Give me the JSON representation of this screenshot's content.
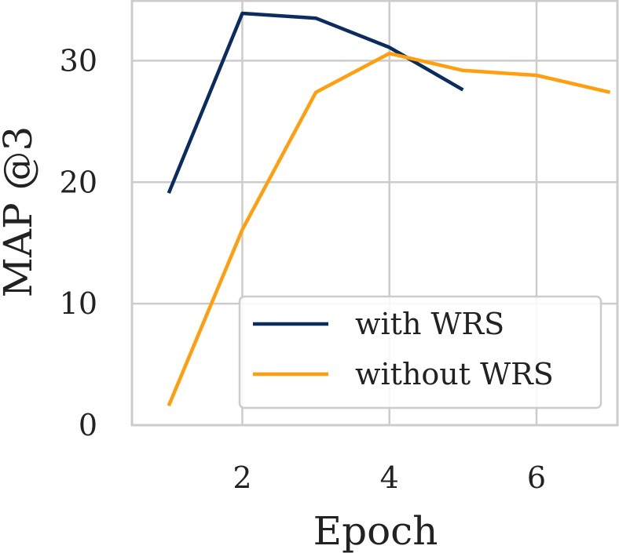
{
  "chart_data": {
    "type": "line",
    "title": "",
    "xlabel": "Epoch",
    "ylabel": "MAP @3",
    "xlim": [
      0.5,
      7.1
    ],
    "ylim": [
      0,
      35
    ],
    "xticks": [
      2,
      4,
      6
    ],
    "yticks": [
      0,
      10,
      20,
      30
    ],
    "grid": true,
    "legend_position": "lower-right",
    "series": [
      {
        "name": "with WRS",
        "color": "#0b2c5e",
        "x": [
          1,
          2,
          3,
          4,
          5
        ],
        "y": [
          19.1,
          33.9,
          33.5,
          31.1,
          27.6
        ]
      },
      {
        "name": "without WRS",
        "color": "#ff9f0f",
        "x": [
          1,
          2,
          3,
          4,
          5,
          6,
          7
        ],
        "y": [
          1.6,
          16.1,
          27.4,
          30.6,
          29.2,
          28.8,
          27.4
        ]
      }
    ]
  }
}
